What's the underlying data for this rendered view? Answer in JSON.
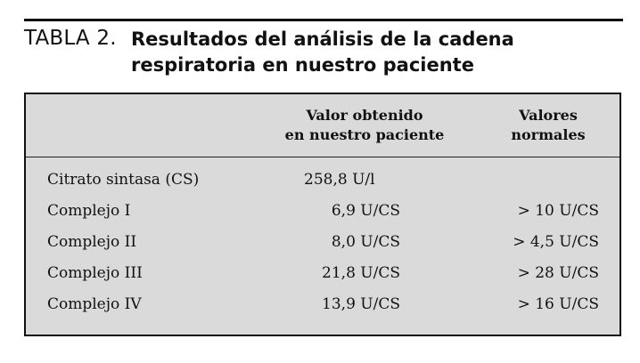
{
  "caption": {
    "label": "TABLA 2.",
    "title": "Resultados del análisis de la cadena\nrespiratoria en nuestro paciente"
  },
  "table": {
    "headers": {
      "value": "Valor obtenido\nen nuestro paciente",
      "normal": "Valores\nnormales"
    },
    "rows": [
      {
        "label": "Citrato sintasa (CS)",
        "value": "258,8 U/l",
        "normal": ""
      },
      {
        "label": "Complejo I",
        "value": "6,9 U/CS",
        "normal": "> 10 U/CS"
      },
      {
        "label": "Complejo II",
        "value": "8,0 U/CS",
        "normal": "> 4,5 U/CS"
      },
      {
        "label": "Complejo III",
        "value": "21,8 U/CS",
        "normal": "> 28 U/CS"
      },
      {
        "label": "Complejo IV",
        "value": "13,9 U/CS",
        "normal": "> 16 U/CS"
      }
    ]
  },
  "colors": {
    "table_background": "#dadada",
    "rule": "#111111"
  }
}
